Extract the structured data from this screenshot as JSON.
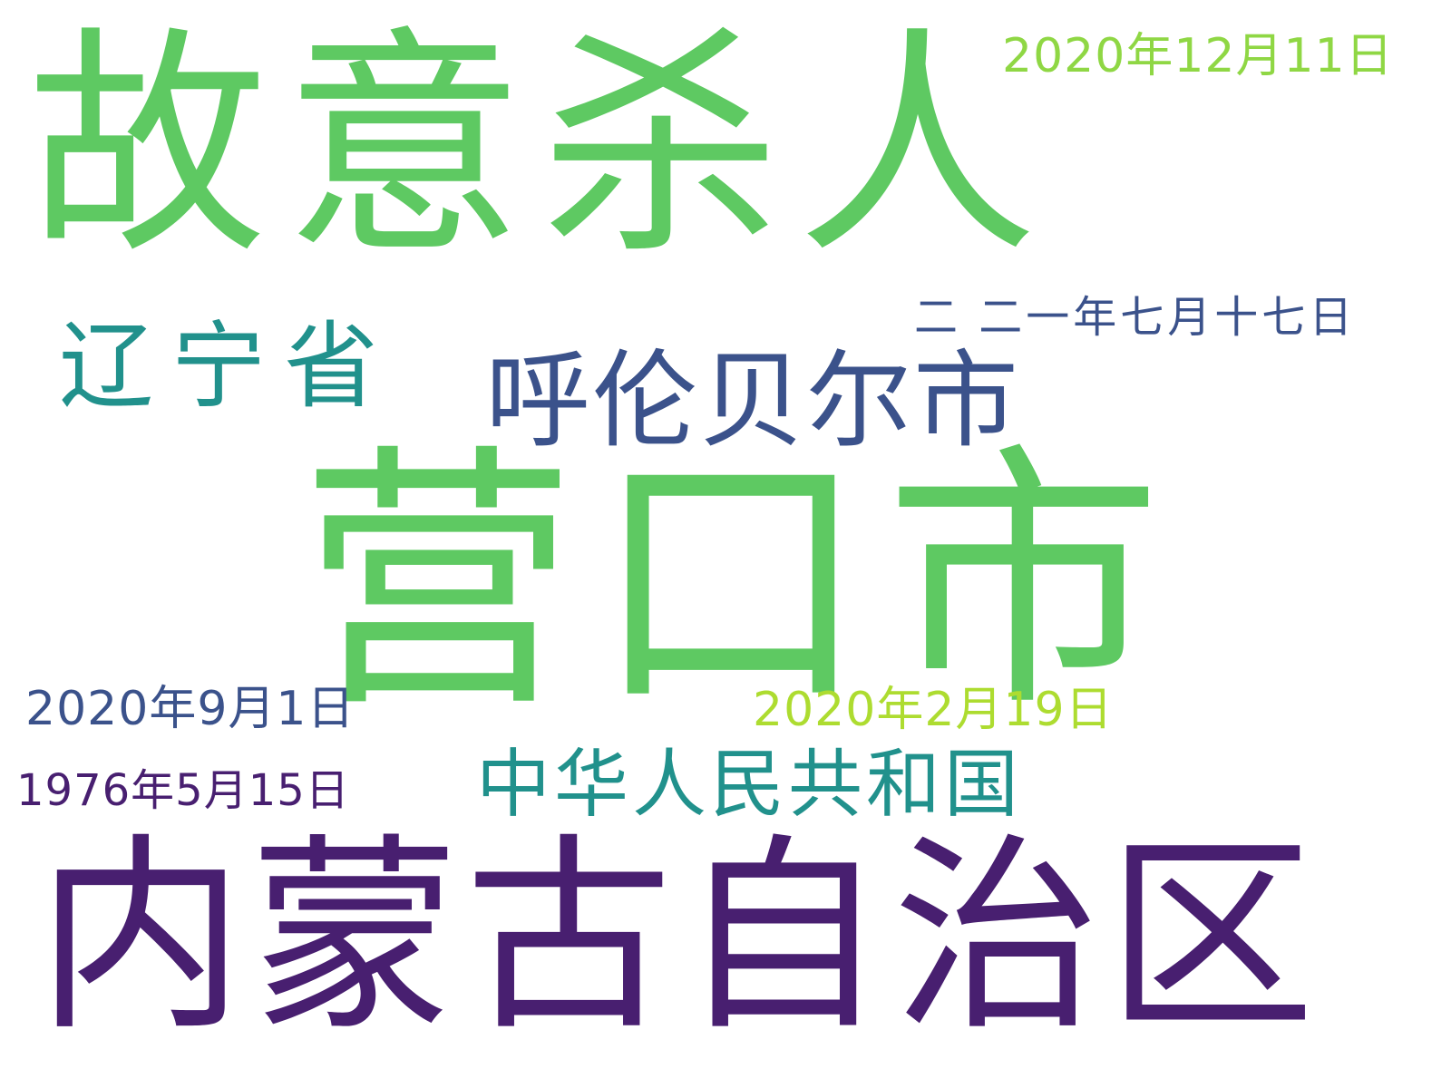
{
  "words": [
    {
      "text": "故意杀人",
      "color": "#5ec962"
    },
    {
      "text": "营口市",
      "color": "#5ec962"
    },
    {
      "text": "内蒙古自治区",
      "color": "#481f70"
    },
    {
      "text": "中华人民共和国",
      "color": "#21918c"
    },
    {
      "text": "呼伦贝尔市",
      "color": "#3b528b"
    },
    {
      "text": "辽宁省",
      "color": "#21918c"
    },
    {
      "text": "二 二一年七月十七日",
      "color": "#3b528b"
    },
    {
      "text": "2020年12月11日",
      "color": "#8fd744"
    },
    {
      "text": "2020年2月19日",
      "color": "#addc30"
    },
    {
      "text": "2020年9月1日",
      "color": "#3b528b"
    },
    {
      "text": "1976年5月15日",
      "color": "#481f70"
    }
  ]
}
